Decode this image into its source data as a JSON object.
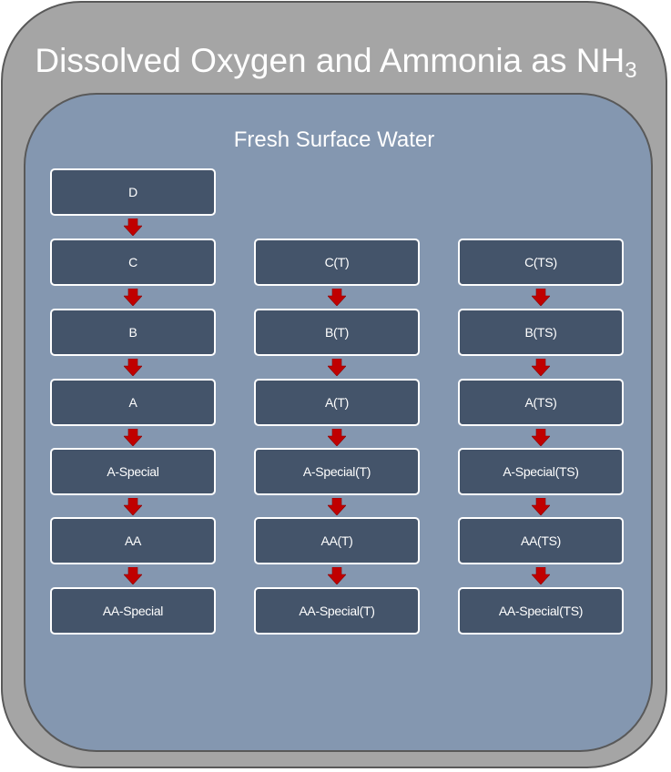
{
  "title": {
    "main": "Dissolved Oxygen and Ammonia as NH",
    "subscript": "3"
  },
  "subtitle": "Fresh Surface Water",
  "columns": [
    {
      "boxes": [
        "D",
        "C",
        "B",
        "A",
        "A-Special",
        "AA",
        "AA-Special"
      ]
    },
    {
      "boxes": [
        "C(T)",
        "B(T)",
        "A(T)",
        "A-Special(T)",
        "AA(T)",
        "AA-Special(T)"
      ]
    },
    {
      "boxes": [
        "C(TS)",
        "B(TS)",
        "A(TS)",
        "A-Special(TS)",
        "AA(TS)",
        "AA-Special(TS)"
      ]
    }
  ],
  "colors": {
    "outer_fill": "#a5a5a5",
    "inner_fill": "#8497b0",
    "box_fill": "#44546a",
    "arrow": "#c00000"
  }
}
